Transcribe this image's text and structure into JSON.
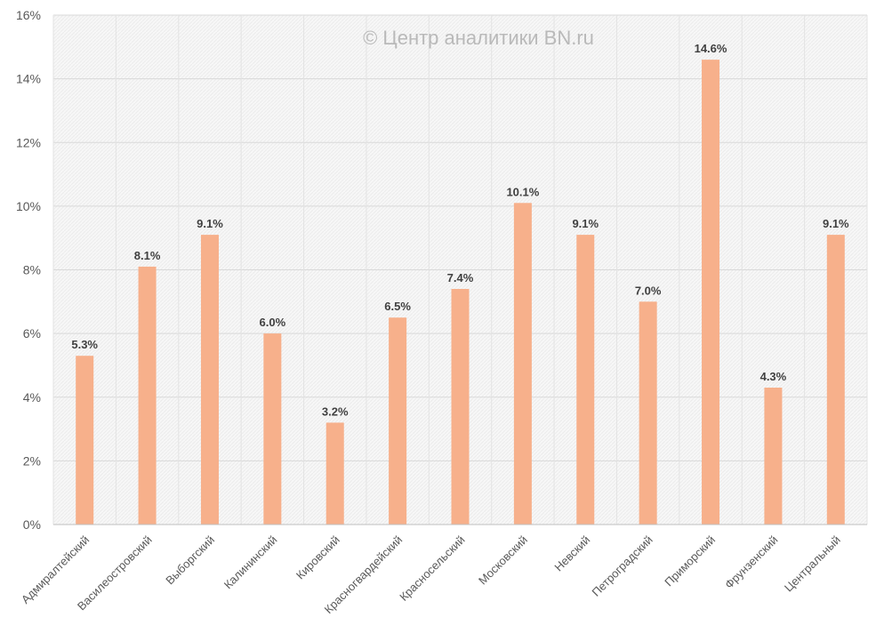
{
  "chart_data": {
    "type": "bar",
    "title": "",
    "watermark": "© Центр аналитики BN.ru",
    "xlabel": "",
    "ylabel": "",
    "ylim": [
      0,
      16
    ],
    "yticks": [
      0,
      2,
      4,
      6,
      8,
      10,
      12,
      14,
      16
    ],
    "ytick_labels": [
      "0%",
      "2%",
      "4%",
      "6%",
      "8%",
      "10%",
      "12%",
      "14%",
      "16%"
    ],
    "grid": true,
    "legend": "none",
    "bar_color": "#F7B08B",
    "categories": [
      "Адмиралтейский",
      "Василеостровский",
      "Выборгский",
      "Калининский",
      "Кировский",
      "Красногвардейский",
      "Красносельский",
      "Московский",
      "Невский",
      "Петроградский",
      "Приморский",
      "Фрунзенский",
      "Центральный"
    ],
    "values": [
      5.3,
      8.1,
      9.1,
      6.0,
      3.2,
      6.5,
      7.4,
      10.1,
      9.1,
      7.0,
      14.6,
      4.3,
      9.1
    ],
    "data_labels": [
      "5.3%",
      "8.1%",
      "9.1%",
      "6.0%",
      "3.2%",
      "6.5%",
      "7.4%",
      "10.1%",
      "9.1%",
      "7.0%",
      "14.6%",
      "4.3%",
      "9.1%"
    ]
  }
}
